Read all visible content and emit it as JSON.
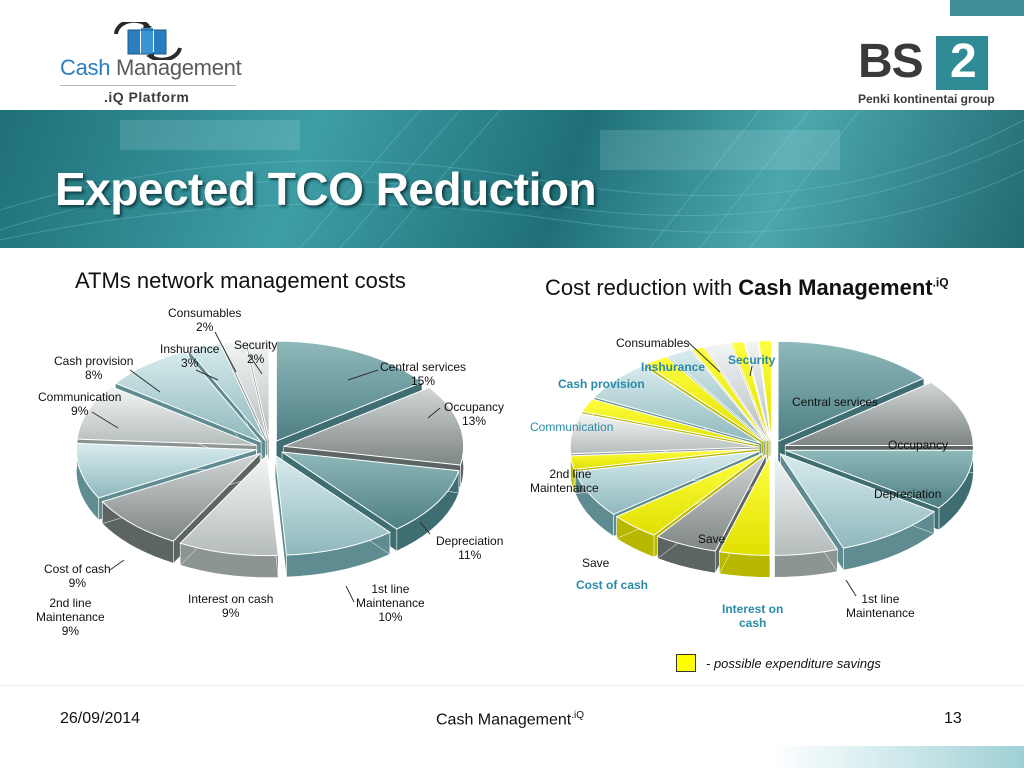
{
  "header": {
    "left_logo": {
      "word1": "Cash",
      "word2": "Management",
      "platform": ".iQ Platform"
    },
    "right_logo": {
      "bs": "BS",
      "two": "2",
      "group": "Penki kontinentai group"
    }
  },
  "banner": {
    "title": "Expected TCO Reduction"
  },
  "left_chart": {
    "title": "ATMs network management costs",
    "labels": {
      "consumables": [
        "Consumables",
        "2%"
      ],
      "security": [
        "Security",
        "2%"
      ],
      "inshurance": [
        "Inshurance",
        "3%"
      ],
      "cash_provision": [
        "Cash provision",
        "8%"
      ],
      "communication": [
        "Communication",
        "9%"
      ],
      "central_services": [
        "Central services",
        "15%"
      ],
      "occupancy": [
        "Occupancy",
        "13%"
      ],
      "depreciation": [
        "Depreciation",
        "11%"
      ],
      "first_line": [
        "1st line",
        "Maintenance",
        "10%"
      ],
      "interest": [
        "Interest on cash",
        "9%"
      ],
      "cost_of_cash": [
        "Cost of cash",
        "9%"
      ],
      "second_line": [
        "2nd line",
        "Maintenance",
        "9%"
      ]
    }
  },
  "right_chart": {
    "title_prefix": "Cost reduction with ",
    "title_bold": "Cash Management",
    "title_sup": ".iQ",
    "labels": {
      "consumables": "Consumables",
      "security": "Security",
      "inshurance": "Inshurance",
      "cash_provision": "Cash provision",
      "communication": "Communication",
      "central_services": "Central services",
      "occupancy": "Occupancy",
      "depreciation": "Depreciation",
      "second_line_1": "2nd line",
      "second_line_2": "Maintenance",
      "save_inner": "Save",
      "save_outer": "Save",
      "cost_of_cash": "Cost of cash",
      "interest_1": "Interest on",
      "interest_2": "cash",
      "first_line_1": "1st line",
      "first_line_2": "Maintenance"
    },
    "legend_text": "- possible expenditure savings"
  },
  "chart_data": [
    {
      "type": "pie",
      "title": "ATMs network management costs",
      "categories": [
        "Central services",
        "Occupancy",
        "Depreciation",
        "1st line Maintenance",
        "Interest on cash",
        "Cost of cash",
        "2nd line Maintenance",
        "Communication",
        "Cash provision",
        "Inshurance",
        "Consumables",
        "Security"
      ],
      "values": [
        15,
        13,
        11,
        10,
        9,
        9,
        9,
        9,
        8,
        3,
        2,
        2
      ],
      "unit": "%"
    },
    {
      "type": "pie",
      "title": "Cost reduction with Cash Management.iQ",
      "categories": [
        "Central services",
        "Occupancy",
        "Depreciation",
        "1st line Maintenance",
        "Interest on cash",
        "Save",
        "Cost of cash",
        "Save",
        "2nd line Maintenance",
        "Save",
        "Communication",
        "Save",
        "Cash provision",
        "Save",
        "Inshurance",
        "Save",
        "Consumables",
        "Save",
        "Security",
        "Save"
      ],
      "highlight": [
        "Save"
      ]
    }
  ],
  "colors": {
    "teal": "#2f8c96",
    "banner": "#3e9ea6",
    "savings_yellow": "#ffff00",
    "blue_label": "#2a8aa8"
  },
  "footer": {
    "date": "26/09/2014",
    "center_text": "Cash Management",
    "center_sup": ".iQ",
    "page_number": "13"
  }
}
